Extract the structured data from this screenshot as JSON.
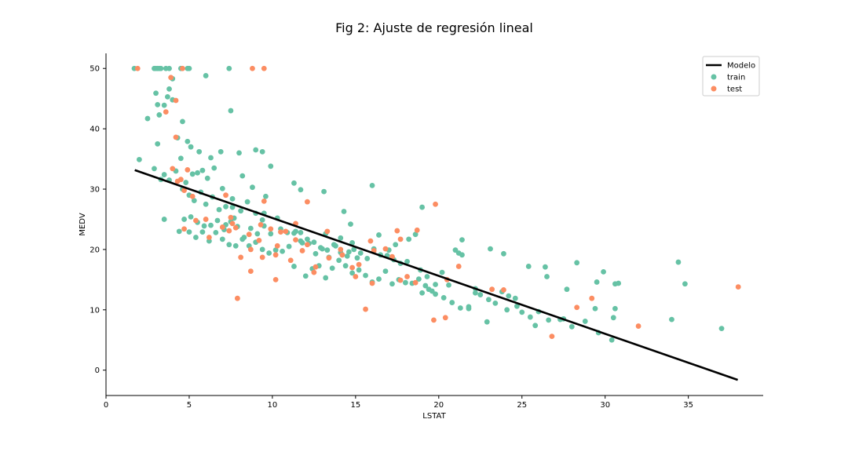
{
  "chart_data": {
    "type": "scatter",
    "title": "Fig 2: Ajuste de regresión lineal",
    "xlabel": "LSTAT",
    "ylabel": "MEDV",
    "xlim": [
      0,
      39.5
    ],
    "ylim": [
      -4.2,
      52.5
    ],
    "xticks": [
      0,
      5,
      10,
      15,
      20,
      25,
      30,
      35
    ],
    "yticks": [
      0,
      10,
      20,
      30,
      40,
      50
    ],
    "grid": false,
    "legend_position": "top-right",
    "series": [
      {
        "name": "Modelo",
        "kind": "line",
        "color": "#000000",
        "x": [
          1.73,
          37.97
        ],
        "y": [
          33.15,
          -1.62
        ]
      },
      {
        "name": "train",
        "kind": "scatter",
        "color": "#66c2a5",
        "x": [
          1.7,
          2.9,
          3.0,
          3.1,
          3.2,
          3.3,
          3.6,
          3.8,
          4.0,
          4.5,
          4.9,
          5.0,
          6.0,
          7.4,
          3.0,
          3.1,
          3.2,
          3.5,
          3.7,
          3.8,
          4.0,
          4.3,
          4.6,
          4.9,
          5.1,
          5.6,
          6.3,
          6.9,
          7.5,
          8.0,
          9.0,
          2.0,
          2.5,
          2.9,
          3.1,
          3.3,
          3.5,
          3.8,
          4.2,
          4.5,
          4.8,
          5.2,
          5.5,
          5.8,
          6.1,
          6.5,
          7.0,
          7.6,
          8.2,
          8.8,
          9.4,
          9.9,
          4.6,
          5.0,
          5.3,
          5.7,
          6.0,
          6.4,
          6.8,
          7.2,
          7.7,
          8.1,
          8.5,
          9.0,
          9.6,
          4.7,
          5.1,
          5.5,
          5.9,
          6.3,
          6.7,
          7.1,
          7.5,
          7.9,
          8.3,
          8.7,
          9.1,
          9.5,
          9.9,
          10.3,
          5.0,
          5.4,
          5.8,
          6.2,
          6.6,
          7.0,
          7.4,
          7.8,
          8.2,
          8.6,
          9.0,
          9.4,
          9.8,
          10.2,
          10.6,
          11.0,
          11.4,
          11.8,
          12.2,
          12.6,
          13.0,
          13.4,
          13.8,
          14.2,
          14.6,
          10.5,
          10.9,
          11.3,
          11.7,
          12.1,
          12.5,
          12.9,
          13.3,
          13.7,
          14.1,
          14.5,
          14.9,
          15.3,
          15.7,
          16.1,
          16.5,
          16.9,
          17.3,
          17.7,
          18.1,
          12.0,
          12.4,
          12.8,
          13.2,
          13.6,
          14.0,
          14.4,
          14.8,
          15.2,
          15.6,
          16.0,
          16.4,
          16.8,
          17.2,
          17.6,
          18.0,
          18.4,
          18.8,
          19.2,
          19.6,
          11.3,
          11.7,
          13.1,
          14.3,
          14.7,
          16.0,
          16.4,
          17.0,
          17.4,
          18.2,
          18.6,
          19.0,
          19.4,
          19.8,
          20.2,
          20.6,
          21.0,
          21.4,
          21.8,
          22.2,
          19.0,
          19.8,
          20.3,
          20.8,
          21.3,
          21.8,
          22.5,
          23.0,
          23.4,
          23.8,
          24.2,
          24.6,
          25.0,
          25.5,
          26.0,
          26.6,
          27.3,
          28.0,
          28.8,
          29.6,
          30.4,
          21.2,
          21.4,
          23.1,
          23.9,
          25.4,
          26.4,
          27.7,
          28.3,
          29.5,
          29.9,
          30.6,
          30.8,
          34.0,
          34.4,
          34.8,
          37.0,
          3.5,
          4.4,
          7.2,
          7.6,
          9.4,
          9.5,
          11.3,
          11.7,
          13.2,
          14.1,
          14.8,
          15.1,
          18.9,
          19.3,
          22.2,
          22.9,
          24.1,
          24.7,
          25.8,
          26.5,
          27.5,
          29.4,
          30.5,
          30.6
        ],
        "y": [
          50.0,
          50.0,
          50.0,
          50.0,
          50.0,
          50.0,
          50.0,
          50.0,
          48.3,
          50.0,
          50.0,
          50.0,
          48.8,
          50.0,
          45.9,
          44.0,
          42.3,
          43.9,
          45.3,
          46.6,
          44.8,
          38.5,
          41.2,
          37.9,
          37.0,
          36.2,
          35.2,
          36.2,
          43.0,
          36.0,
          36.5,
          34.9,
          41.7,
          33.4,
          37.5,
          31.6,
          32.4,
          31.5,
          33.0,
          35.1,
          31.1,
          32.5,
          32.7,
          33.1,
          31.8,
          33.5,
          30.1,
          28.4,
          32.2,
          30.3,
          36.2,
          33.8,
          30.0,
          29.0,
          28.1,
          29.5,
          27.5,
          28.7,
          26.6,
          27.1,
          25.2,
          26.4,
          27.9,
          26.0,
          28.8,
          25.0,
          25.4,
          24.5,
          23.9,
          24.0,
          24.8,
          23.3,
          24.6,
          23.8,
          22.0,
          23.5,
          22.6,
          23.9,
          22.6,
          25.2,
          22.9,
          22.0,
          22.9,
          21.4,
          22.8,
          21.7,
          20.8,
          20.6,
          21.7,
          20.6,
          21.2,
          20.0,
          19.4,
          19.9,
          19.7,
          20.5,
          23.0,
          21.1,
          21.0,
          19.3,
          20.1,
          18.7,
          20.6,
          19.1,
          19.6,
          23.4,
          22.8,
          22.7,
          21.4,
          21.7,
          21.2,
          20.3,
          19.9,
          20.8,
          19.5,
          18.9,
          20.0,
          19.4,
          18.5,
          20.1,
          19.1,
          19.0,
          18.3,
          17.7,
          18.0,
          15.6,
          16.8,
          17.3,
          15.3,
          16.9,
          18.2,
          17.3,
          16.1,
          16.6,
          15.7,
          14.6,
          15.1,
          16.4,
          14.3,
          15.0,
          14.5,
          14.4,
          15.1,
          14.0,
          13.1,
          31.0,
          29.9,
          29.6,
          26.3,
          24.2,
          30.6,
          22.4,
          19.9,
          20.8,
          21.7,
          22.5,
          27.0,
          13.4,
          14.2,
          16.2,
          14.1,
          19.9,
          21.6,
          10.2,
          13.5,
          12.8,
          12.6,
          12.0,
          11.2,
          10.3,
          10.5,
          12.5,
          11.7,
          11.1,
          13.0,
          12.3,
          11.9,
          9.6,
          8.8,
          9.7,
          8.3,
          8.4,
          7.2,
          8.1,
          6.2,
          5.0,
          19.4,
          19.1,
          20.1,
          19.3,
          17.2,
          17.1,
          13.4,
          17.8,
          14.6,
          16.3,
          10.2,
          14.4,
          8.4,
          17.9,
          14.3,
          6.9,
          25.0,
          23.0,
          24.1,
          27.0,
          24.9,
          26.0,
          17.2,
          22.8,
          22.6,
          21.9,
          21.1,
          18.6,
          16.6,
          15.5,
          12.8,
          8.0,
          10.0,
          10.6,
          7.4,
          15.5,
          8.5,
          10.2,
          8.7,
          14.3
        ]
      },
      {
        "name": "test",
        "kind": "scatter",
        "color": "#fc8d62",
        "x": [
          1.9,
          4.6,
          8.8,
          9.5,
          3.9,
          3.6,
          4.2,
          4.2,
          4.0,
          4.3,
          4.5,
          4.7,
          4.9,
          5.2,
          6.0,
          7.2,
          7.5,
          7.8,
          4.7,
          5.4,
          6.2,
          7.0,
          7.6,
          8.6,
          9.2,
          9.9,
          10.3,
          10.8,
          11.4,
          12.1,
          7.4,
          8.1,
          8.7,
          9.4,
          10.2,
          11.1,
          11.8,
          12.6,
          13.4,
          14.2,
          15.2,
          16.1,
          17.2,
          18.1,
          13.3,
          14.1,
          15.0,
          15.9,
          16.8,
          17.7,
          18.6,
          7.9,
          8.7,
          10.2,
          12.5,
          15.6,
          19.7,
          20.4,
          21.2,
          23.2,
          23.9,
          26.8,
          28.3,
          29.2,
          32.0,
          38.0,
          12.1,
          9.5,
          9.3,
          10.5,
          11.4,
          14.8,
          16.0,
          17.5,
          18.7,
          17.7,
          19.8,
          20.5
        ],
        "y": [
          50.0,
          50.0,
          50.0,
          50.0,
          48.5,
          42.8,
          44.7,
          38.6,
          33.4,
          31.3,
          31.6,
          29.8,
          33.2,
          28.8,
          25.0,
          29.0,
          25.3,
          23.6,
          23.4,
          24.8,
          22.0,
          23.7,
          24.3,
          22.5,
          21.5,
          23.4,
          20.6,
          23.0,
          21.6,
          20.8,
          23.1,
          18.7,
          20.0,
          18.7,
          19.1,
          18.2,
          19.8,
          17.1,
          18.6,
          19.1,
          17.5,
          19.8,
          18.8,
          15.5,
          23.0,
          20.0,
          15.5,
          21.4,
          20.1,
          21.7,
          14.5,
          11.9,
          16.4,
          15.0,
          16.2,
          10.1,
          8.3,
          8.7,
          17.2,
          13.4,
          13.3,
          5.6,
          10.4,
          11.9,
          7.3,
          13.8,
          27.9,
          28.0,
          24.1,
          22.9,
          24.3,
          17.0,
          14.4,
          23.1,
          23.2,
          14.9,
          27.5,
          15.0
        ]
      }
    ]
  }
}
